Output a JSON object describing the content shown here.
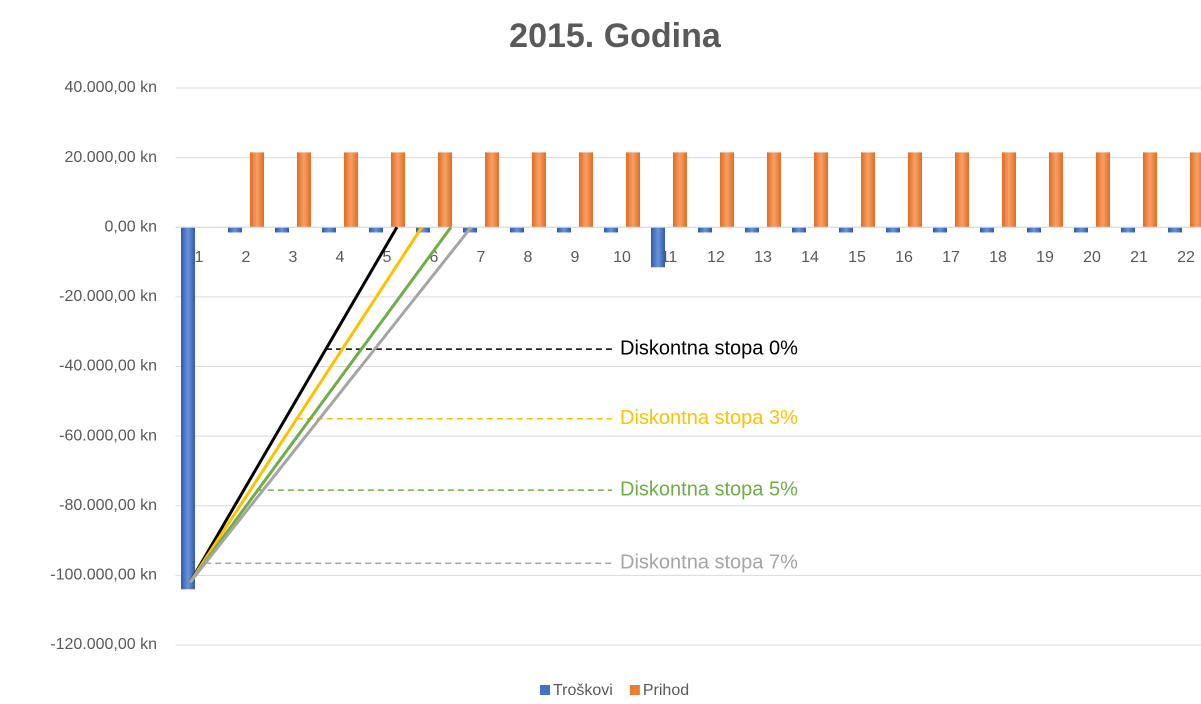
{
  "chart_data": {
    "type": "bar",
    "title": "2015. Godina",
    "categories": [
      "1",
      "2",
      "3",
      "4",
      "5",
      "6",
      "7",
      "8",
      "9",
      "10",
      "11",
      "12",
      "13",
      "14",
      "15",
      "16",
      "17",
      "18",
      "19",
      "20",
      "21",
      "22"
    ],
    "series": [
      {
        "name": "Troškovi",
        "color": "#4472c4",
        "values": [
          -104000,
          -1500,
          -1500,
          -1500,
          -1500,
          -1500,
          -1500,
          -1500,
          -1500,
          -1500,
          -11500,
          -1500,
          -1500,
          -1500,
          -1500,
          -1500,
          -1500,
          -1500,
          -1500,
          -1500,
          -1500,
          -1500
        ]
      },
      {
        "name": "Prihod",
        "color": "#ed7d31",
        "values": [
          0,
          21500,
          21500,
          21500,
          21500,
          21500,
          21500,
          21500,
          21500,
          21500,
          21500,
          21500,
          21500,
          21500,
          21500,
          21500,
          21500,
          21500,
          21500,
          21500,
          21500,
          21500
        ]
      }
    ],
    "ylim": [
      -120000,
      40000
    ],
    "yticks": [
      {
        "value": 40000,
        "label": "40.000,00 kn"
      },
      {
        "value": 20000,
        "label": "20.000,00 kn"
      },
      {
        "value": 0,
        "label": "0,00 kn"
      },
      {
        "value": -20000,
        "label": "-20.000,00 kn"
      },
      {
        "value": -40000,
        "label": "-40.000,00 kn"
      },
      {
        "value": -60000,
        "label": "-60.000,00 kn"
      },
      {
        "value": -80000,
        "label": "-80.000,00 kn"
      },
      {
        "value": -100000,
        "label": "-100.000,00 kn"
      },
      {
        "value": -120000,
        "label": "-120.000,00 kn"
      }
    ],
    "grid": true,
    "legend": "bottom",
    "annotations": [
      {
        "text": "Diskontna stopa 0%",
        "color": "#000000",
        "from": [
          0.81,
          -102000
        ],
        "to": [
          5.21,
          0
        ],
        "y": -35000
      },
      {
        "text": "Diskontna stopa 3%",
        "color": "#ffc000",
        "from": [
          0.81,
          -102000
        ],
        "to": [
          5.74,
          0
        ],
        "y": -55000
      },
      {
        "text": "Diskontna stopa 5%",
        "color": "#70ad47",
        "from": [
          0.81,
          -102000
        ],
        "to": [
          6.36,
          0
        ],
        "y": -75500
      },
      {
        "text": "Diskontna stopa 7%",
        "color": "#a5a5a5",
        "from": [
          0.81,
          -102000
        ],
        "to": [
          6.79,
          0
        ],
        "y": -96500
      }
    ]
  }
}
